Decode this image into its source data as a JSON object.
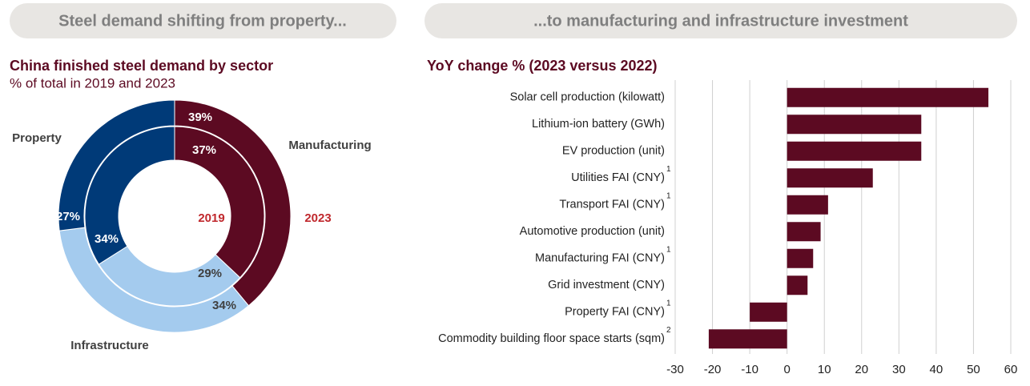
{
  "headers": [
    "Steel demand shifting from property...",
    "...to manufacturing and infrastructure investment"
  ],
  "chart_data": [
    {
      "type": "donut",
      "title": "China finished steel demand by sector",
      "subtitle": "% of total in 2019 and 2023",
      "categories": [
        "Manufacturing",
        "Infrastructure",
        "Property"
      ],
      "colors": [
        "#5c0a22",
        "#a4cbee",
        "#003a78"
      ],
      "series": [
        {
          "name": "2019",
          "values": [
            37,
            29,
            34
          ],
          "value_labels": [
            "37%",
            "29%",
            "34%"
          ]
        },
        {
          "name": "2023",
          "values": [
            39,
            34,
            27
          ],
          "value_labels": [
            "39%",
            "34%",
            "27%"
          ]
        }
      ]
    },
    {
      "type": "hbar",
      "title": "YoY change % (2023 versus 2022)",
      "categories": [
        "Solar cell production (kilowatt)",
        "Lithium-ion battery (GWh)",
        "EV production (unit)",
        "Utilities FAI (CNY)",
        "Transport FAI (CNY)",
        "Automotive production (unit)",
        "Manufacturing FAI (CNY)",
        "Grid investment (CNY)",
        "Property FAI (CNY)",
        "Commodity building floor space starts (sqm)"
      ],
      "notes": [
        null,
        null,
        null,
        "1",
        "1",
        null,
        "1",
        null,
        "1",
        "2"
      ],
      "values": [
        54,
        36,
        36,
        23,
        11,
        9,
        7,
        5.5,
        -10,
        -21
      ],
      "color": "#5c0a22",
      "xlim": [
        -30,
        60
      ],
      "xticks": [
        -30,
        -20,
        -10,
        0,
        10,
        20,
        30,
        40,
        50,
        60
      ],
      "grid": true
    }
  ]
}
